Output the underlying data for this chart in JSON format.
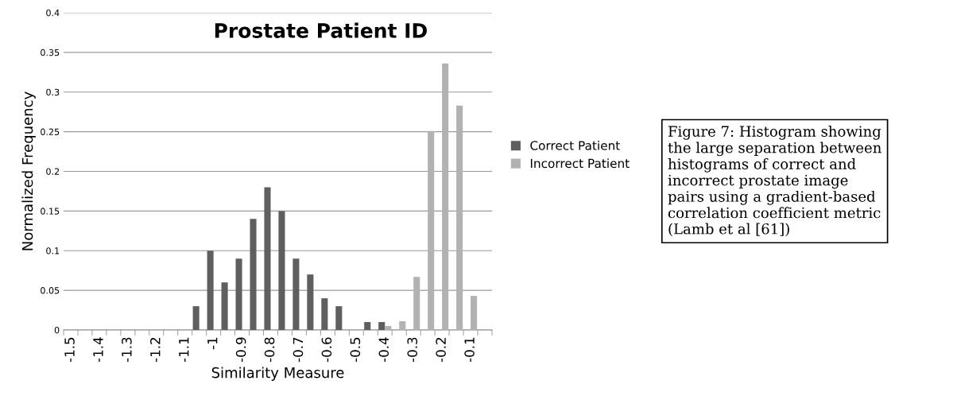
{
  "chart_data": {
    "type": "bar",
    "title": "Prostate Patient ID",
    "xlabel": "Similarity Measure",
    "ylabel": "Normalized Frequency",
    "categories": [
      "-1.5",
      null,
      "-1.4",
      null,
      "-1.3",
      null,
      "-1.2",
      null,
      "-1.1",
      null,
      "-1",
      null,
      "-0.9",
      null,
      "-0.8",
      null,
      "-0.7",
      null,
      "-0.6",
      null,
      "-0.5",
      null,
      "-0.4",
      null,
      "-0.3",
      null,
      "-0.2",
      null,
      "-0.1",
      null
    ],
    "series": [
      {
        "name": "Correct Patient",
        "color": "#5f5f5f",
        "values": [
          0,
          0,
          0,
          0,
          0,
          0,
          0,
          0,
          0,
          0.03,
          0.1,
          0.06,
          0.09,
          0.14,
          0.18,
          0.15,
          0.09,
          0.07,
          0.04,
          0.03,
          0,
          0.01,
          0.01,
          0,
          0,
          0,
          0,
          0,
          0,
          0
        ]
      },
      {
        "name": "Incorrect Patient",
        "color": "#b2b2b2",
        "values": [
          0,
          0,
          0,
          0,
          0,
          0,
          0,
          0,
          0,
          0,
          0,
          0,
          0,
          0,
          0,
          0,
          0,
          0,
          0,
          0,
          0,
          0,
          0.005,
          0.011,
          0.067,
          0.251,
          0.336,
          0.283,
          0.043,
          0
        ]
      }
    ],
    "ylim": [
      0,
      0.4
    ],
    "yticks": [
      0,
      0.05,
      0.1,
      0.15,
      0.2,
      0.25,
      0.3,
      0.35,
      0.4
    ],
    "grid": "y",
    "legend": "right",
    "annotations": [
      "Figure 7: Histogram showing\nthe large separation between\nhistograms of correct and\nincorrect prostate image\npairs using a gradient-based\ncorrelation coefficient metric\n(Lamb et al [61])"
    ]
  }
}
